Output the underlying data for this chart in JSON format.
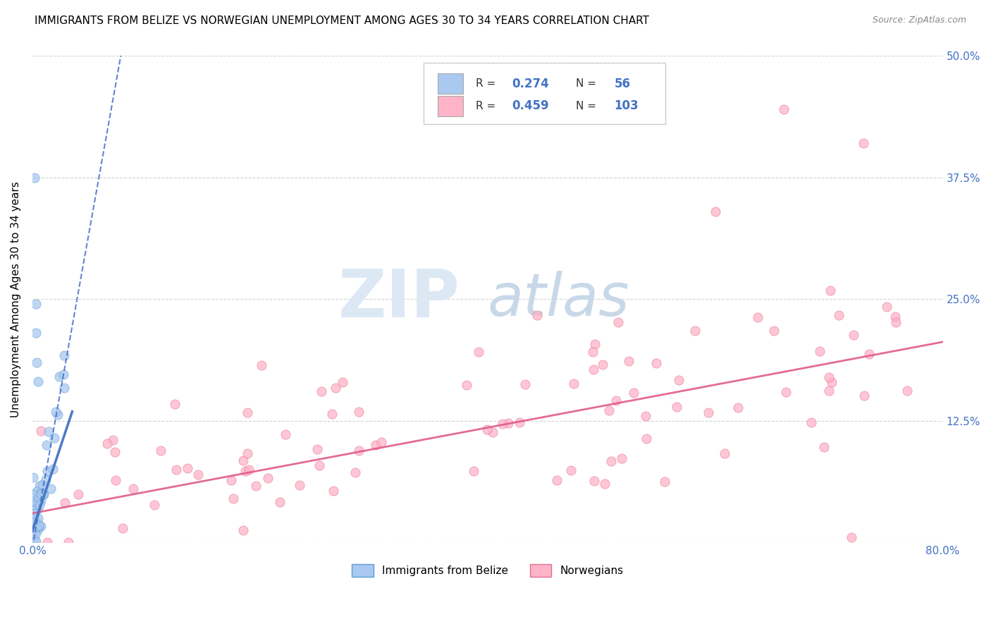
{
  "title": "IMMIGRANTS FROM BELIZE VS NORWEGIAN UNEMPLOYMENT AMONG AGES 30 TO 34 YEARS CORRELATION CHART",
  "source": "Source: ZipAtlas.com",
  "ylabel": "Unemployment Among Ages 30 to 34 years",
  "xlim": [
    0.0,
    0.8
  ],
  "ylim": [
    0.0,
    0.5
  ],
  "xticks": [
    0.0,
    0.1,
    0.2,
    0.3,
    0.4,
    0.5,
    0.6,
    0.7,
    0.8
  ],
  "yticks": [
    0.0,
    0.125,
    0.25,
    0.375,
    0.5
  ],
  "series1_label": "Immigrants from Belize",
  "series1_R": 0.274,
  "series1_N": 56,
  "series1_color": "#aac9f0",
  "series1_edge_color": "#5b9bd5",
  "series1_line_color": "#4472c4",
  "series2_label": "Norwegians",
  "series2_R": 0.459,
  "series2_N": 103,
  "series2_color": "#ffb3c8",
  "series2_edge_color": "#e07090",
  "series2_line_color": "#e05c8a",
  "watermark_zip": "ZIP",
  "watermark_atlas": "atlas",
  "background_color": "#ffffff",
  "grid_color": "#d0d0d0",
  "title_fontsize": 11,
  "tick_label_color": "#4472c4",
  "tick_label_fontsize": 11,
  "source_fontsize": 9,
  "ylabel_fontsize": 11,
  "seed": 42,
  "blue_trend_slope": 6.5,
  "blue_trend_intercept": -0.005,
  "pink_trend_slope": 0.22,
  "pink_trend_intercept": 0.03
}
